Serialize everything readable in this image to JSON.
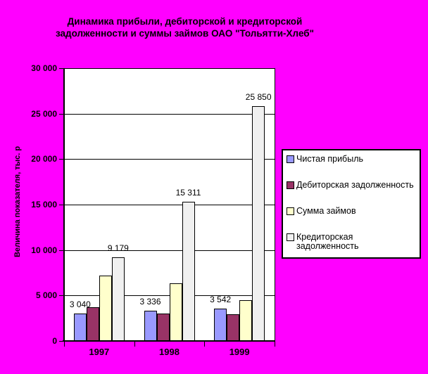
{
  "title": {
    "line1": "Динамика прибыли, дебиторской и кредиторской",
    "line2": "задолженности и суммы займов ОАО \"Тольятти-Хлеб\""
  },
  "y_axis": {
    "title": "Величина показателя, тыс. р",
    "tick_labels": [
      "0",
      "5 000",
      "10 000",
      "15 000",
      "20 000",
      "25 000",
      "30 000"
    ]
  },
  "x_axis": {
    "categories": [
      "1997",
      "1998",
      "1999"
    ]
  },
  "colors": {
    "background": "#FF00FF",
    "plot_background": "#FFFFFF",
    "axis": "#000000",
    "series_net_profit": "#9999FF",
    "series_receivables": "#993366",
    "series_loans": "#FFFFCC",
    "series_payables": "#F0F0F0"
  },
  "legend": {
    "items": [
      "Чистая прибыль",
      "Дебиторская задолженность",
      "Сумма займов",
      "Кредиторская задолженность"
    ]
  },
  "chart_data": {
    "type": "bar",
    "title": "Динамика прибыли, дебиторской и кредиторской задолженности и суммы займов ОАО \"Тольятти-Хлеб\"",
    "categories": [
      "1997",
      "1998",
      "1999"
    ],
    "series": [
      {
        "name": "Чистая прибыль",
        "color": "#9999FF",
        "values": [
          3040,
          3336,
          3542
        ],
        "data_labels": [
          "3 040",
          "3 336",
          "3 542"
        ]
      },
      {
        "name": "Дебиторская задолженность",
        "color": "#993366",
        "values": [
          3700,
          3000,
          2900
        ],
        "data_labels": null
      },
      {
        "name": "Сумма займов",
        "color": "#FFFFCC",
        "values": [
          7200,
          6350,
          4450
        ],
        "data_labels": null
      },
      {
        "name": "Кредиторская задолженность",
        "color": "#F0F0F0",
        "values": [
          9179,
          15311,
          25850
        ],
        "data_labels": [
          "9 179",
          "15 311",
          "25 850"
        ]
      }
    ],
    "ylabel": "Величина показателя, тыс. р",
    "xlabel": "",
    "ylim": [
      0,
      30000
    ],
    "ytick_interval": 5000,
    "grid": true,
    "legend_position": "right"
  }
}
